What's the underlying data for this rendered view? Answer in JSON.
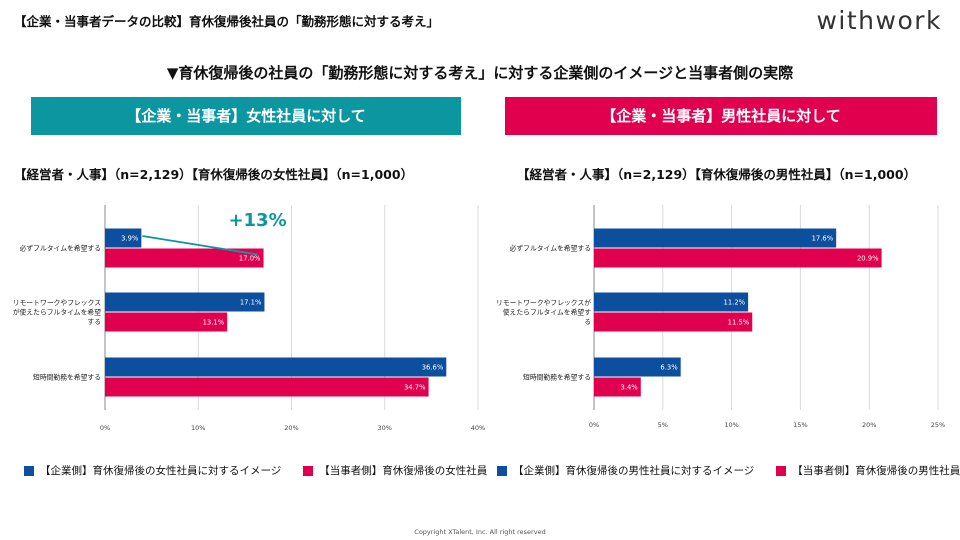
{
  "header": {
    "top_title": "【企業・当事者データの比較】育休復帰後社員の「勤務形態に対する考え」",
    "logo": "withwork",
    "main_title": "▼育休復帰後の社員の「勤務形態に対する考え」に対する企業側のイメージと当事者側の実際",
    "footer": "Copyright XTalent, Inc. All right reserved"
  },
  "panels": {
    "left": {
      "banner": "【企業・当事者】女性社員に対して",
      "subtitle": "【経営者・人事】（n=2,129）【育休復帰後の女性社員】（n=1,000）",
      "legend_company": "【企業側】育休復帰後の女性社員に対するイメージ",
      "legend_employee": "【当事者側】育休復帰後の女性社員",
      "annotation": "+13%"
    },
    "right": {
      "banner": "【企業・当事者】男性社員に対して",
      "subtitle": "【経営者・人事】（n=2,129）【育休復帰後の男性社員】（n=1,000）",
      "legend_company": "【企業側】育休復帰後の男性社員に対するイメージ",
      "legend_employee": "【当事者側】育休復帰後の男性社員"
    }
  },
  "colors": {
    "company": "#0b4f9e",
    "employee": "#e0004e",
    "accent": "#0c97a0",
    "grid": "#d9d9d9"
  },
  "chart_data": [
    {
      "type": "bar",
      "orientation": "horizontal",
      "categories": [
        [
          "必ずフルタイムを希望する"
        ],
        [
          "リモートワークやフレックス",
          "が使えたらフルタイムを希望",
          "する"
        ],
        [
          "短時間勤務を希望する"
        ]
      ],
      "series": [
        {
          "name": "【企業側】育休復帰後の女性社員に対するイメージ",
          "values": [
            3.9,
            17.1,
            36.6
          ],
          "labels": [
            "3.9%",
            "17.1%",
            "36.6%"
          ]
        },
        {
          "name": "【当事者側】育休復帰後の女性社員",
          "values": [
            17.0,
            13.1,
            34.7
          ],
          "labels": [
            "17.0%",
            "13.1%",
            "34.7%"
          ]
        }
      ],
      "xlim": [
        0,
        40
      ],
      "ticks": [
        0,
        10,
        20,
        30,
        40
      ],
      "tick_labels": [
        "0%",
        "10%",
        "20%",
        "30%",
        "40%"
      ],
      "annotation": {
        "text": "+13%",
        "from_value": 3.9,
        "to_value": 17.0
      }
    },
    {
      "type": "bar",
      "orientation": "horizontal",
      "categories": [
        [
          "必ずフルタイムを希望する"
        ],
        [
          "リモートワークやフレックスが",
          "使えたらフルタイムを希望す",
          "る"
        ],
        [
          "短時間勤務を希望する"
        ]
      ],
      "series": [
        {
          "name": "【企業側】育休復帰後の男性社員に対するイメージ",
          "values": [
            17.6,
            11.2,
            6.3
          ],
          "labels": [
            "17.6%",
            "11.2%",
            "6.3%"
          ]
        },
        {
          "name": "【当事者側】育休復帰後の男性社員",
          "values": [
            20.9,
            11.5,
            3.4
          ],
          "labels": [
            "20.9%",
            "11.5%",
            "3.4%"
          ]
        }
      ],
      "xlim": [
        0,
        25
      ],
      "ticks": [
        0,
        5,
        10,
        15,
        20,
        25
      ],
      "tick_labels": [
        "0%",
        "5%",
        "10%",
        "15%",
        "20%",
        "25%"
      ]
    }
  ]
}
